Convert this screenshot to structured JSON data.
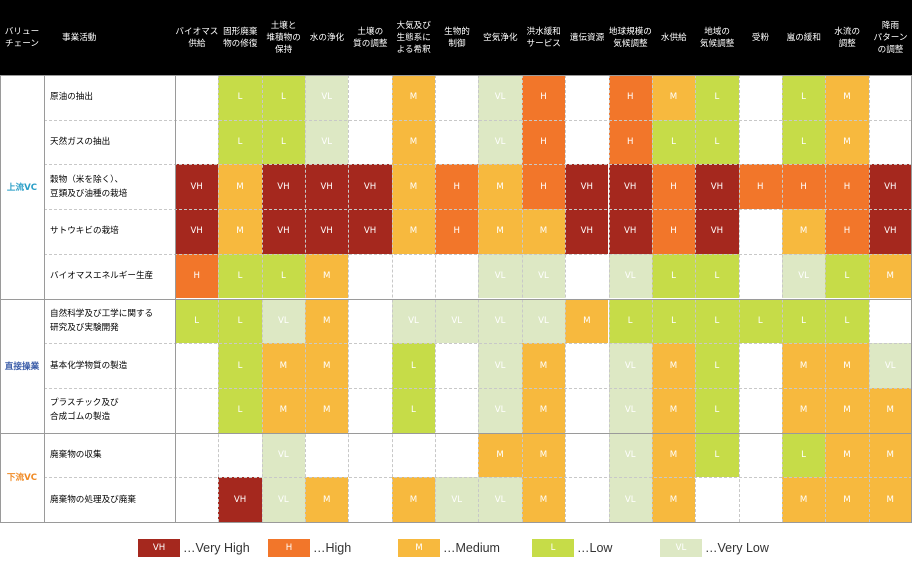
{
  "colors": {
    "VH": {
      "bg": "#a5281e",
      "fg": "#ffffff"
    },
    "H": {
      "bg": "#f2762a",
      "fg": "#ffffff"
    },
    "M": {
      "bg": "#f7b93e",
      "fg": "#ffffff"
    },
    "L": {
      "bg": "#c6dc48",
      "fg": "#ffffff"
    },
    "VL": {
      "bg": "#dde8c4",
      "fg": "#ffffff"
    },
    "vc_upstream": "#2a9fc7",
    "vc_direct": "#3a5ca8",
    "vc_downstream": "#f08a24"
  },
  "header": {
    "value_chain": "バリュー\nチェーン",
    "activity": "事業活動",
    "services": [
      "バイオマス\n供給",
      "固形廃棄\n物の修復",
      "土壌と\n堆積物の\n保持",
      "水の浄化",
      "土壌の\n質の調整",
      "大気及び\n生態系に\nよる希釈",
      "生物的\n制御",
      "空気浄化",
      "洪水緩和\nサービス",
      "遺伝資源",
      "地球規模の\n気候調整",
      "水供給",
      "地域の\n気候調整",
      "受粉",
      "嵐の緩和",
      "水流の\n調整",
      "降雨\nパターン\nの調整"
    ]
  },
  "groups": [
    {
      "label": "上流VC",
      "color_key": "vc_upstream",
      "rows": 5
    },
    {
      "label": "直接操業",
      "color_key": "vc_direct",
      "rows": 3
    },
    {
      "label": "下流VC",
      "color_key": "vc_downstream",
      "rows": 2
    }
  ],
  "rows": [
    {
      "activity": "原油の抽出",
      "ratings": [
        "",
        "L",
        "L",
        "VL",
        "",
        "M",
        "",
        "VL",
        "H",
        "",
        "H",
        "M",
        "L",
        "",
        "L",
        "M",
        ""
      ]
    },
    {
      "activity": "天然ガスの抽出",
      "ratings": [
        "",
        "L",
        "L",
        "VL",
        "",
        "M",
        "",
        "VL",
        "H",
        "",
        "H",
        "L",
        "L",
        "",
        "L",
        "M",
        ""
      ]
    },
    {
      "activity": "穀物（米を除く）、\n豆類及び油種の栽培",
      "ratings": [
        "VH",
        "M",
        "VH",
        "VH",
        "VH",
        "M",
        "H",
        "M",
        "H",
        "VH",
        "VH",
        "H",
        "VH",
        "H",
        "H",
        "H",
        "VH"
      ]
    },
    {
      "activity": "サトウキビの栽培",
      "ratings": [
        "VH",
        "M",
        "VH",
        "VH",
        "VH",
        "M",
        "H",
        "M",
        "M",
        "VH",
        "VH",
        "H",
        "VH",
        "",
        "M",
        "H",
        "VH"
      ]
    },
    {
      "activity": "バイオマスエネルギー生産",
      "ratings": [
        "H",
        "L",
        "L",
        "M",
        "",
        "",
        "",
        "VL",
        "VL",
        "",
        "VL",
        "L",
        "L",
        "",
        "VL",
        "L",
        "M"
      ]
    },
    {
      "activity": "自然科学及び工学に関する\n研究及び実験開発",
      "ratings": [
        "L",
        "L",
        "VL",
        "M",
        "",
        "VL",
        "VL",
        "VL",
        "VL",
        "M",
        "L",
        "L",
        "L",
        "L",
        "L",
        "L",
        ""
      ]
    },
    {
      "activity": "基本化学物質の製造",
      "ratings": [
        "",
        "L",
        "M",
        "M",
        "",
        "L",
        "",
        "VL",
        "M",
        "",
        "VL",
        "M",
        "L",
        "",
        "M",
        "M",
        "VL"
      ]
    },
    {
      "activity": "プラスチック及び\n合成ゴムの製造",
      "ratings": [
        "",
        "L",
        "M",
        "M",
        "",
        "L",
        "",
        "VL",
        "M",
        "",
        "VL",
        "M",
        "L",
        "",
        "M",
        "M",
        "M"
      ]
    },
    {
      "activity": "廃棄物の収集",
      "ratings": [
        "",
        "",
        "VL",
        "",
        "",
        "",
        "",
        "M",
        "M",
        "",
        "VL",
        "M",
        "L",
        "",
        "L",
        "M",
        "M"
      ]
    },
    {
      "activity": "廃棄物の処理及び廃棄",
      "ratings": [
        "",
        "VH",
        "VL",
        "M",
        "",
        "M",
        "VL",
        "VL",
        "M",
        "",
        "VL",
        "M",
        "",
        "",
        "M",
        "M",
        "M"
      ]
    }
  ],
  "legend": [
    {
      "code": "VH",
      "label": "…Very High"
    },
    {
      "code": "H",
      "label": "…High"
    },
    {
      "code": "M",
      "label": "…Medium"
    },
    {
      "code": "L",
      "label": "…Low"
    },
    {
      "code": "VL",
      "label": "…Very Low"
    }
  ]
}
